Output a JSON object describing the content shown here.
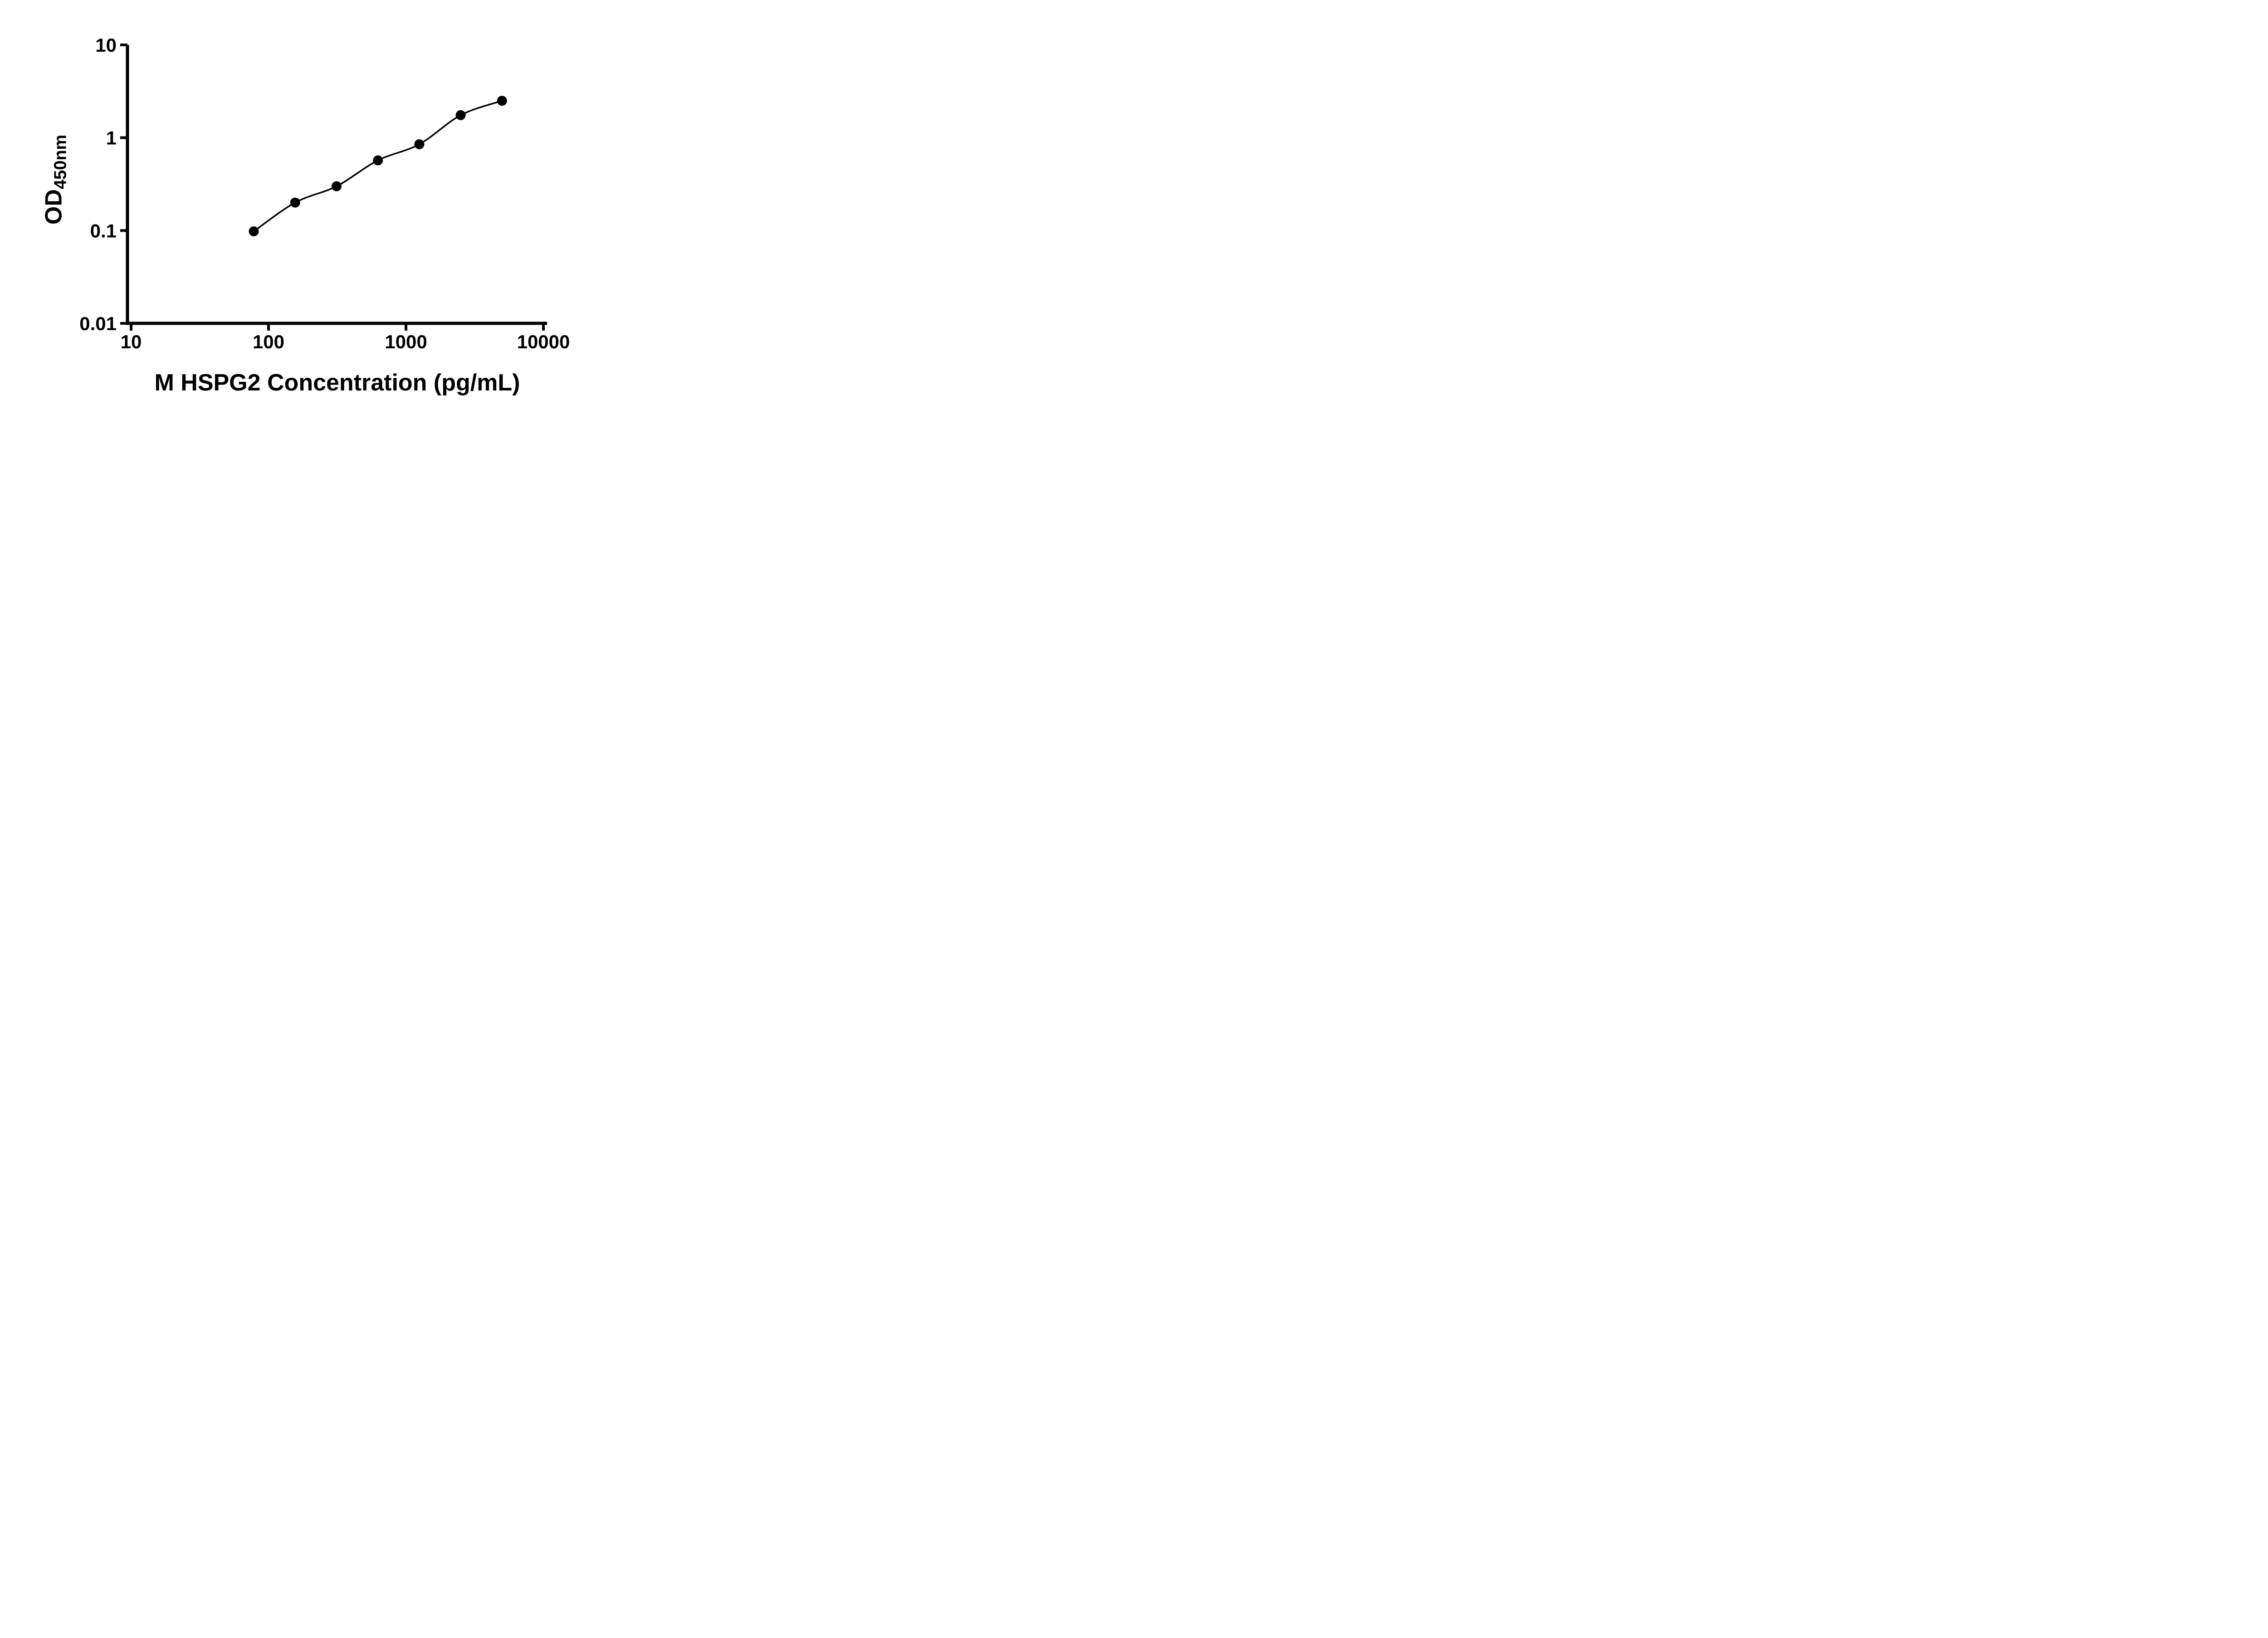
{
  "chart_data": {
    "type": "scatter",
    "title": "",
    "xlabel": "M HSPG2 Concentration (pg/mL)",
    "ylabel": "OD",
    "ylabel_subscript": "450nm",
    "x_scale": "log10",
    "y_scale": "log10",
    "xlim": [
      10,
      10000
    ],
    "ylim": [
      0.01,
      10
    ],
    "x_ticks": [
      10,
      100,
      1000,
      10000
    ],
    "x_tick_labels": [
      "10",
      "100",
      "1000",
      "10000"
    ],
    "y_ticks": [
      0.01,
      0.1,
      1,
      10
    ],
    "y_tick_labels": [
      "0.01",
      "0.1",
      "1",
      "10"
    ],
    "grid": false,
    "legend": "none",
    "marker": {
      "shape": "circle",
      "color": "#000000"
    },
    "curve": {
      "style": "smooth-fit",
      "color": "#000000"
    },
    "points": {
      "x": [
        78.125,
        156.25,
        312.5,
        625,
        1250,
        2500,
        5000
      ],
      "y": [
        0.098,
        0.2,
        0.3,
        0.57,
        0.85,
        1.75,
        2.5
      ]
    },
    "axis_color": "#000000",
    "background_color": "#ffffff"
  }
}
